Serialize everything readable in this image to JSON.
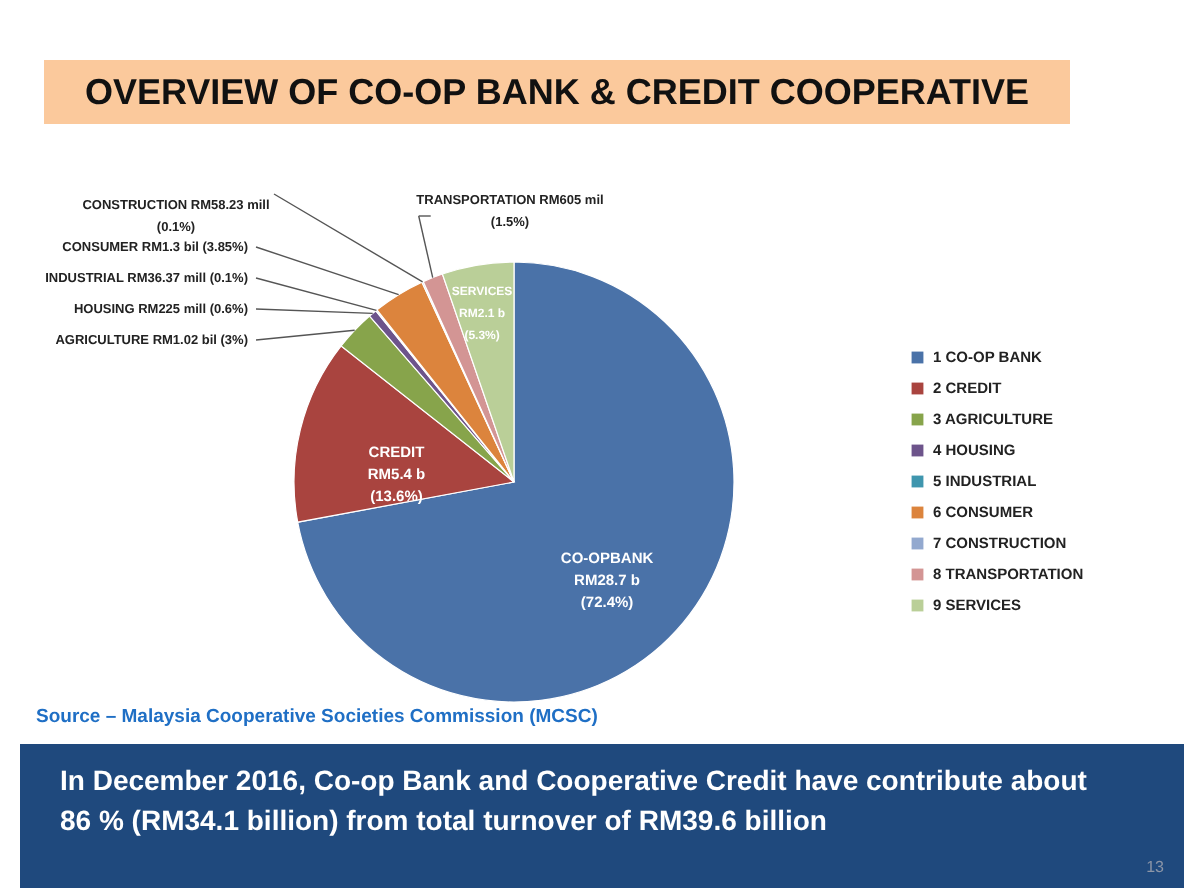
{
  "chart_data": {
    "type": "pie",
    "title": "OVERVIEW OF CO-OP BANK & CREDIT COOPERATIVE",
    "categories": [
      "1 CO-OP BANK",
      "2 CREDIT",
      "3 AGRICULTURE",
      "4 HOUSING",
      "5 INDUSTRIAL",
      "6 CONSUMER",
      "7 CONSTRUCTION",
      "8 TRANSPORTATION",
      "9 SERVICES"
    ],
    "values": [
      72.4,
      13.6,
      3,
      0.6,
      0.1,
      3.85,
      0.1,
      1.5,
      5.3
    ],
    "colors": [
      "#4a72a8",
      "#a9443f",
      "#87a44b",
      "#6d548b",
      "#3f96ae",
      "#dc843d",
      "#93a9cf",
      "#d39594",
      "#bacf98"
    ],
    "value_labels": [
      "CO-OPBANK\nRM28.7 b\n(72.4%)",
      "CREDIT\nRM5.4  b\n(13.6%)",
      "AGRICULTURE RM1.02 bil (3%)",
      "HOUSING RM225 mill (0.6%)",
      "INDUSTRIAL RM36.37 mill (0.1%)",
      "CONSUMER RM1.3 bil (3.85%)",
      "CONSTRUCTION RM58.23 mill\n(0.1%)",
      "TRANSPORTATION RM605 mil\n(1.5%)",
      "SERVICES\nRM2.1 b\n(5.3%)"
    ],
    "legend": "right",
    "annotations": [
      "Source – Malaysia Cooperative Societies Commission (MCSC)",
      "In December 2016, Co-op Bank and Cooperative Credit have contribute about 86 % (RM34.1 billion) from total turnover of RM39.6 billion",
      "13"
    ]
  }
}
